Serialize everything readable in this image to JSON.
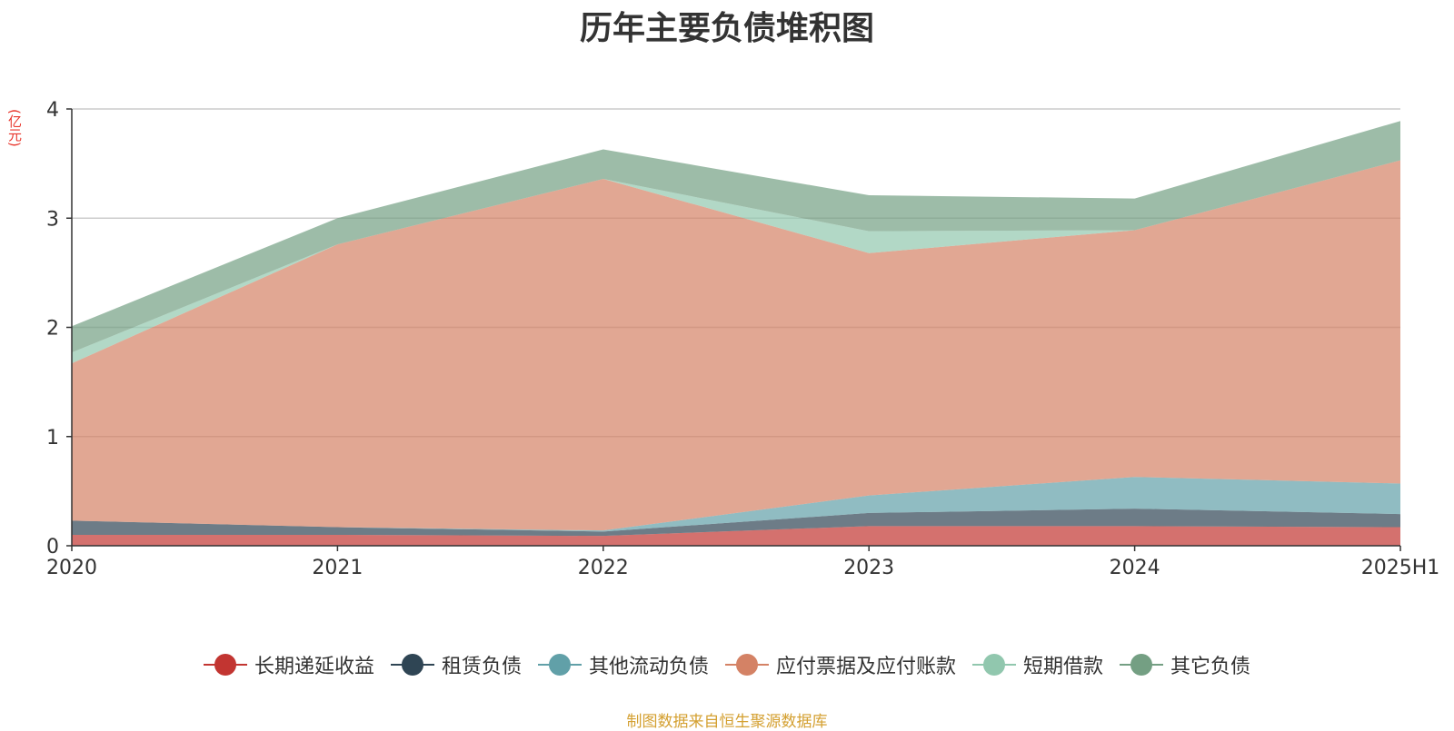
{
  "chart_data": {
    "type": "area",
    "stacked": true,
    "title": "历年主要负债堆积图",
    "unit": "(亿元)",
    "x": [
      "2020",
      "2021",
      "2022",
      "2023",
      "2024",
      "2025H1"
    ],
    "ylim": [
      0,
      4
    ],
    "yticks": [
      "0",
      "1",
      "2",
      "3",
      "4"
    ],
    "grid": true,
    "legend_position": "bottom",
    "series": [
      {
        "name": "长期递延收益",
        "color": "#c23531",
        "values": [
          0.1,
          0.1,
          0.09,
          0.18,
          0.18,
          0.17
        ]
      },
      {
        "name": "租赁负债",
        "color": "#2f4554",
        "values": [
          0.13,
          0.07,
          0.04,
          0.12,
          0.16,
          0.12
        ]
      },
      {
        "name": "其他流动负债",
        "color": "#61a0a8",
        "values": [
          0,
          0,
          0.01,
          0.16,
          0.29,
          0.28
        ]
      },
      {
        "name": "应付票据及应付账款",
        "color": "#d48265",
        "values": [
          1.44,
          2.59,
          3.22,
          2.22,
          2.26,
          2.96
        ]
      },
      {
        "name": "短期借款",
        "color": "#91c7ae",
        "values": [
          0.1,
          0,
          0,
          0.2,
          0,
          0
        ]
      },
      {
        "name": "其它负债",
        "color": "#749f83",
        "values": [
          0.24,
          0.24,
          0.27,
          0.33,
          0.29,
          0.36
        ]
      }
    ]
  },
  "footer": {
    "source": "制图数据来自恒生聚源数据库"
  }
}
